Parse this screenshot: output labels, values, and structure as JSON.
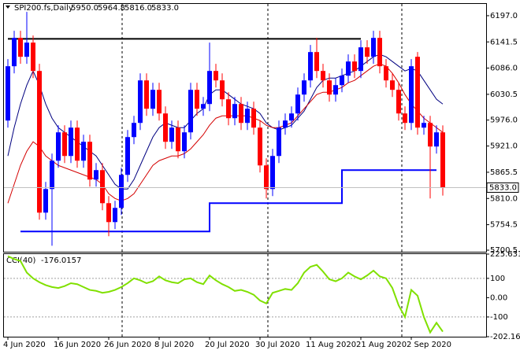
{
  "chart_data": [
    {
      "type": "candlestick",
      "symbol": "SPI200.fs,Daily",
      "header_values": [
        "5950.0",
        "5964.8",
        "5816.0",
        "5833.0"
      ],
      "last_price": {
        "value": 5833,
        "label": "5833.0"
      },
      "up_color": "#0000ff",
      "down_color": "#ff0000",
      "categories": [
        "4 Jun 2020",
        null,
        null,
        null,
        null,
        null,
        null,
        null,
        "16 Jun 2020",
        null,
        null,
        null,
        null,
        null,
        null,
        null,
        "26 Jun 2020",
        null,
        null,
        null,
        null,
        null,
        null,
        null,
        "8 Jul 2020",
        null,
        null,
        null,
        null,
        null,
        null,
        null,
        "20 Jul 2020",
        null,
        null,
        null,
        null,
        null,
        null,
        null,
        "30 Jul 2020",
        null,
        null,
        null,
        null,
        null,
        null,
        null,
        "11 Aug 2020",
        null,
        null,
        null,
        null,
        null,
        null,
        null,
        "21 Aug 2020",
        null,
        null,
        null,
        null,
        null,
        null,
        null,
        "2 Sep 2020",
        null,
        null,
        null,
        null,
        null
      ],
      "open": [
        5975,
        6090,
        6150,
        6110,
        6140,
        6080,
        5780,
        5830,
        5890,
        5950,
        5900,
        5960,
        5890,
        5930,
        5850,
        5870,
        5800,
        5760,
        5790,
        5860,
        5940,
        5970,
        6060,
        6000,
        6040,
        5990,
        5930,
        5960,
        5910,
        5950,
        6040,
        6000,
        6010,
        6080,
        6060,
        6020,
        5980,
        6010,
        5970,
        6000,
        5960,
        5880,
        5830,
        5900,
        5960,
        5975,
        5990,
        6030,
        6060,
        6120,
        6080,
        6060,
        6030,
        6050,
        6070,
        6100,
        6080,
        6130,
        6110,
        6150,
        6090,
        6060,
        6040,
        5990,
        5970,
        6110,
        5960,
        5970,
        5920,
        5950
      ],
      "high": [
        6105,
        6165,
        6165,
        6205,
        6155,
        6095,
        5845,
        5905,
        5965,
        5965,
        5975,
        5975,
        5945,
        5945,
        5885,
        5885,
        5815,
        5805,
        5875,
        5955,
        5985,
        6075,
        6075,
        6055,
        6055,
        6005,
        5975,
        5975,
        5965,
        6055,
        6055,
        6025,
        6140,
        6095,
        6075,
        6035,
        6025,
        6025,
        6015,
        6015,
        5975,
        5895,
        5915,
        5975,
        5990,
        6005,
        6045,
        6075,
        6135,
        6150,
        6095,
        6075,
        6065,
        6085,
        6115,
        6115,
        6145,
        6145,
        6165,
        6165,
        6105,
        6075,
        6055,
        6005,
        6105,
        6120,
        5985,
        5985,
        5965,
        5964.8
      ],
      "low": [
        5960,
        6075,
        6095,
        6095,
        6065,
        5765,
        5765,
        5710,
        5875,
        5885,
        5885,
        5875,
        5875,
        5835,
        5835,
        5785,
        5730,
        5745,
        5775,
        5845,
        5925,
        5955,
        5985,
        5985,
        5975,
        5915,
        5915,
        5895,
        5895,
        5935,
        5985,
        5985,
        5995,
        6045,
        6005,
        5965,
        5965,
        5955,
        5955,
        5945,
        5865,
        5810,
        5815,
        5885,
        5945,
        5960,
        5975,
        6015,
        6045,
        6065,
        6045,
        6015,
        6015,
        6035,
        6055,
        6065,
        6065,
        6095,
        6095,
        6075,
        6045,
        6025,
        5975,
        5955,
        5955,
        5945,
        5945,
        5810,
        5905,
        5816
      ],
      "close": [
        6090,
        6150,
        6110,
        6140,
        6080,
        5780,
        5830,
        5890,
        5950,
        5900,
        5960,
        5890,
        5930,
        5850,
        5870,
        5800,
        5760,
        5790,
        5860,
        5940,
        5970,
        6060,
        6000,
        6040,
        5990,
        5930,
        5960,
        5910,
        5950,
        6040,
        6000,
        6010,
        6080,
        6060,
        6020,
        5980,
        6010,
        5970,
        6000,
        5960,
        5880,
        5830,
        5900,
        5960,
        5975,
        5990,
        6030,
        6060,
        6120,
        6080,
        6060,
        6030,
        6050,
        6070,
        6100,
        6080,
        6130,
        6110,
        6150,
        6090,
        6060,
        6040,
        5990,
        5970,
        6090,
        5960,
        5970,
        5920,
        5950,
        5833
      ],
      "series": [
        {
          "color": "#000080",
          "width": 1,
          "values": [
            5900,
            5960,
            6010,
            6050,
            6080,
            6050,
            6010,
            5980,
            5960,
            5950,
            5940,
            5930,
            5920,
            5910,
            5900,
            5880,
            5860,
            5840,
            5830,
            5830,
            5850,
            5880,
            5910,
            5940,
            5960,
            5970,
            5965,
            5960,
            5960,
            5975,
            5990,
            6000,
            6030,
            6040,
            6040,
            6030,
            6020,
            6010,
            6005,
            6000,
            5990,
            5970,
            5960,
            5955,
            5960,
            5965,
            5980,
            5995,
            6020,
            6045,
            6060,
            6065,
            6065,
            6070,
            6075,
            6080,
            6090,
            6100,
            6110,
            6115,
            6110,
            6100,
            6090,
            6080,
            6085,
            6080,
            6060,
            6040,
            6020,
            6010
          ]
        },
        {
          "color": "#d40000",
          "width": 1,
          "values": [
            5800,
            5840,
            5880,
            5910,
            5930,
            5920,
            5900,
            5890,
            5880,
            5875,
            5870,
            5865,
            5860,
            5855,
            5850,
            5840,
            5820,
            5810,
            5805,
            5810,
            5820,
            5840,
            5860,
            5880,
            5890,
            5895,
            5900,
            5900,
            5905,
            5915,
            5930,
            5945,
            5965,
            5980,
            5985,
            5985,
            5985,
            5985,
            5985,
            5980,
            5975,
            5965,
            5960,
            5960,
            5965,
            5970,
            5985,
            6000,
            6015,
            6030,
            6035,
            6035,
            6040,
            6045,
            6055,
            6060,
            6070,
            6080,
            6090,
            6095,
            6090,
            6075,
            6055,
            6030,
            6010,
            5995,
            5980,
            5970,
            5960,
            5950
          ]
        },
        {
          "color": "#000000",
          "width": 2,
          "values": [
            6148,
            6148,
            6148,
            6148,
            6148,
            6148,
            6148,
            6148,
            6148,
            6148,
            6148,
            6148,
            6148,
            6148,
            6148,
            6148,
            6148,
            6148,
            6148,
            6148,
            6148,
            6148,
            6148,
            6148,
            6148,
            6148,
            6148,
            6148,
            6148,
            6148,
            6148,
            6148,
            6148,
            6148,
            6148,
            6148,
            6148,
            6148,
            6148,
            6148,
            6148,
            6148,
            6148,
            6148,
            6148,
            6148,
            6148,
            6148,
            6148,
            6148,
            6148,
            6148,
            6148,
            6148,
            6148,
            6148,
            6148,
            null,
            null,
            null,
            null,
            null,
            null,
            null,
            null,
            null,
            null,
            null,
            null,
            null
          ]
        },
        {
          "color": "#0000ff",
          "width": 2,
          "step": true,
          "values": [
            null,
            null,
            5740,
            5740,
            5740,
            5740,
            5740,
            5740,
            5740,
            5740,
            5740,
            5740,
            5740,
            5740,
            5740,
            5740,
            5740,
            5740,
            5740,
            5740,
            5740,
            5740,
            5740,
            5740,
            5740,
            5740,
            5740,
            5740,
            5740,
            5740,
            5740,
            5740,
            5800,
            5800,
            5800,
            5800,
            5800,
            5800,
            5800,
            5800,
            5800,
            5800,
            5800,
            5800,
            5800,
            5800,
            5800,
            5800,
            5800,
            5800,
            5800,
            5800,
            5800,
            5870,
            5870,
            5870,
            5870,
            5870,
            5870,
            5870,
            5870,
            5870,
            5870,
            5870,
            5870,
            5870,
            5870,
            5870,
            5870,
            null
          ]
        }
      ],
      "ylim": [
        5697.2,
        6221.9
      ],
      "yticks": [
        {
          "value": 6197,
          "label": "6197.0"
        },
        {
          "value": 6141.5,
          "label": "6141.5"
        },
        {
          "value": 6086,
          "label": "6086.0"
        },
        {
          "value": 6030.5,
          "label": "6030.5"
        },
        {
          "value": 5976,
          "label": "5976.0"
        },
        {
          "value": 5921,
          "label": "5921.0"
        },
        {
          "value": 5865.5,
          "label": "5865.5"
        },
        {
          "value": 5810,
          "label": "5810.0"
        },
        {
          "value": 5754.5,
          "label": "5754.5"
        },
        {
          "value": 5700.5,
          "label": "5700.5"
        }
      ]
    },
    {
      "type": "line",
      "title": "CCI(40)",
      "current": -176.0157,
      "color": "#80e000",
      "values": [
        215,
        200,
        190,
        130,
        100,
        80,
        65,
        55,
        50,
        60,
        75,
        70,
        55,
        40,
        35,
        25,
        30,
        40,
        55,
        75,
        100,
        90,
        75,
        85,
        110,
        90,
        80,
        75,
        95,
        100,
        80,
        70,
        115,
        90,
        70,
        55,
        35,
        40,
        30,
        15,
        -15,
        -30,
        25,
        35,
        45,
        40,
        75,
        130,
        160,
        170,
        135,
        95,
        85,
        100,
        130,
        110,
        95,
        115,
        140,
        110,
        100,
        50,
        -40,
        -100,
        40,
        10,
        -100,
        -180,
        -130,
        -176.0157
      ],
      "levels": [
        100,
        -100
      ],
      "ylim": [
        -202.16,
        225.6315
      ],
      "yticks": [
        225.6315,
        100,
        {
          "value": 0,
          "label": "0.00"
        },
        -100,
        {
          "value": -202.16,
          "label": "-202.160"
        }
      ]
    }
  ]
}
